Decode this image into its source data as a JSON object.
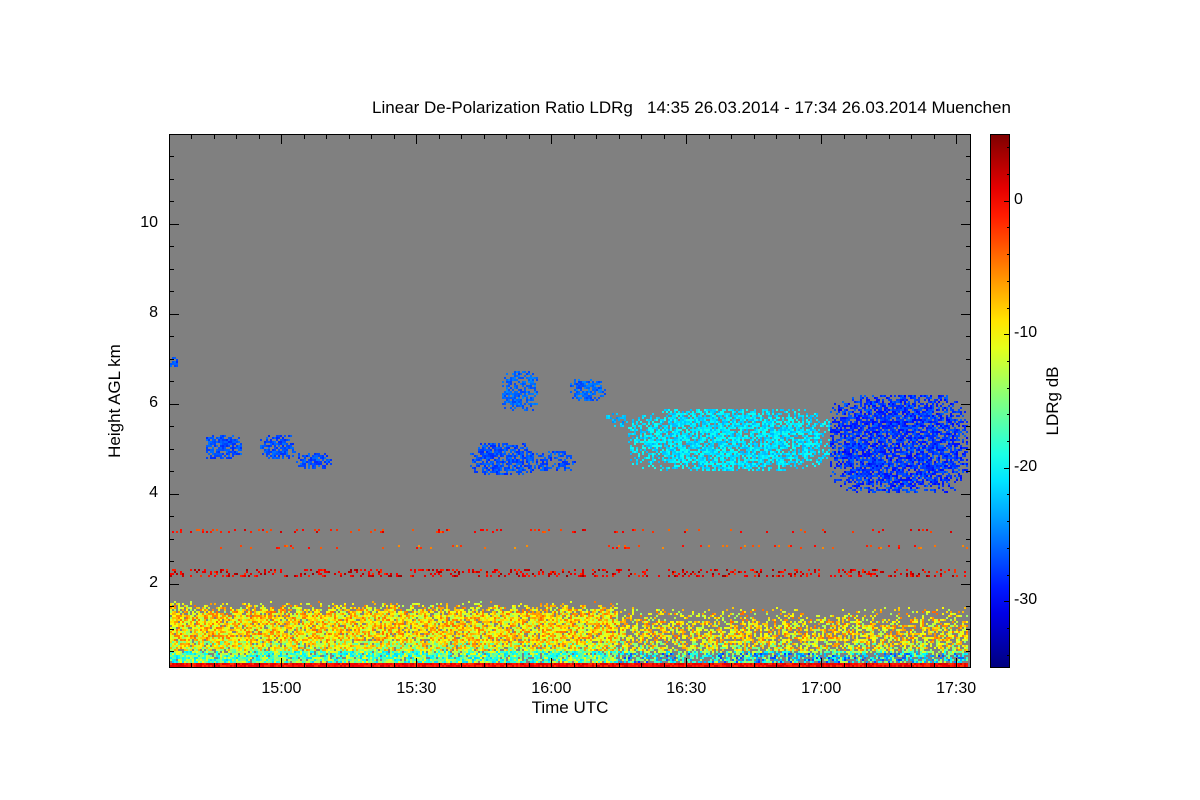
{
  "chart_data": {
    "type": "heatmap",
    "title": "Linear De-Polarization Ratio LDRg   14:35 26.03.2014 - 17:34 26.03.2014 Muenchen",
    "xlabel": "Time UTC",
    "ylabel": "Height AGL km",
    "colorbar_label": "LDRg dB",
    "xlim_minutes_utc": [
      875,
      1053.3
    ],
    "ylim_km": [
      0.13,
      12.0
    ],
    "clim_db": [
      -35,
      5
    ],
    "x_ticks": [
      {
        "min": 900,
        "label": "15:00"
      },
      {
        "min": 930,
        "label": "15:30"
      },
      {
        "min": 960,
        "label": "16:00"
      },
      {
        "min": 990,
        "label": "16:30"
      },
      {
        "min": 1020,
        "label": "17:00"
      },
      {
        "min": 1050,
        "label": "17:30"
      }
    ],
    "y_ticks": [
      {
        "km": 2,
        "label": "2"
      },
      {
        "km": 4,
        "label": "4"
      },
      {
        "km": 6,
        "label": "6"
      },
      {
        "km": 8,
        "label": "8"
      },
      {
        "km": 10,
        "label": "10"
      }
    ],
    "c_ticks": [
      {
        "db": 0,
        "label": "0"
      },
      {
        "db": -10,
        "label": "-10"
      },
      {
        "db": -20,
        "label": "-20"
      },
      {
        "db": -30,
        "label": "-30"
      }
    ],
    "background_color": "#808080",
    "colormap": "jet",
    "features": [
      {
        "name": "boundary-layer-aerosol",
        "t": [
          875,
          1053
        ],
        "h": [
          0.2,
          1.5
        ],
        "ldr_db": -9,
        "spread": 5,
        "density": 0.9
      },
      {
        "name": "near-surface-layer",
        "t": [
          875,
          1053
        ],
        "h": [
          0.13,
          0.2
        ],
        "ldr_db": 0,
        "spread": 2,
        "density": 1
      },
      {
        "name": "aerosol-layer-2.2km",
        "t": [
          875,
          1053
        ],
        "h": [
          2.15,
          2.3
        ],
        "ldr_db": 1,
        "spread": 3,
        "density": 0.25
      },
      {
        "name": "aerosol-layer-2.8km",
        "t": [
          875,
          1053
        ],
        "h": [
          2.75,
          2.85
        ],
        "ldr_db": -3,
        "spread": 3,
        "density": 0.08
      },
      {
        "name": "aerosol-layer-3.2km",
        "t": [
          875,
          1053
        ],
        "h": [
          3.12,
          3.22
        ],
        "ldr_db": -1,
        "spread": 3,
        "density": 0.12
      },
      {
        "name": "cirrus-a",
        "t": [
          875,
          877
        ],
        "h": [
          6.8,
          7.05
        ],
        "ldr_db": -27,
        "spread": 1.5,
        "density": 0.8
      },
      {
        "name": "cirrus-b",
        "t": [
          883,
          891
        ],
        "h": [
          4.75,
          5.3
        ],
        "ldr_db": -27,
        "spread": 1.5,
        "density": 0.8
      },
      {
        "name": "cirrus-c",
        "t": [
          895,
          903
        ],
        "h": [
          4.75,
          5.3
        ],
        "ldr_db": -27,
        "spread": 1.5,
        "density": 0.7
      },
      {
        "name": "cirrus-d",
        "t": [
          903,
          911
        ],
        "h": [
          4.55,
          4.9
        ],
        "ldr_db": -27,
        "spread": 1.5,
        "density": 0.75
      },
      {
        "name": "cirrus-e",
        "t": [
          942,
          956
        ],
        "h": [
          4.4,
          5.15
        ],
        "ldr_db": -27,
        "spread": 1.5,
        "density": 0.7
      },
      {
        "name": "cirrus-f",
        "t": [
          953,
          966
        ],
        "h": [
          4.5,
          4.95
        ],
        "ldr_db": -27,
        "spread": 1.5,
        "density": 0.5
      },
      {
        "name": "cirrus-g",
        "t": [
          949,
          957
        ],
        "h": [
          5.85,
          6.75
        ],
        "ldr_db": -26,
        "spread": 1.5,
        "density": 0.65
      },
      {
        "name": "cirrus-h",
        "t": [
          964,
          972
        ],
        "h": [
          6.05,
          6.55
        ],
        "ldr_db": -26,
        "spread": 1.5,
        "density": 0.7
      },
      {
        "name": "cirrus-i",
        "t": [
          972,
          977
        ],
        "h": [
          5.5,
          5.8
        ],
        "ldr_db": -23,
        "spread": 2,
        "density": 0.5
      },
      {
        "name": "cirrus-main-cyan",
        "t": [
          977,
          1022
        ],
        "h": [
          4.5,
          5.9
        ],
        "ldr_db": -21,
        "spread": 2,
        "density": 0.75
      },
      {
        "name": "cirrus-main-blue",
        "t": [
          1022,
          1053
        ],
        "h": [
          4.0,
          6.2
        ],
        "ldr_db": -28,
        "spread": 2,
        "density": 0.75
      }
    ]
  }
}
